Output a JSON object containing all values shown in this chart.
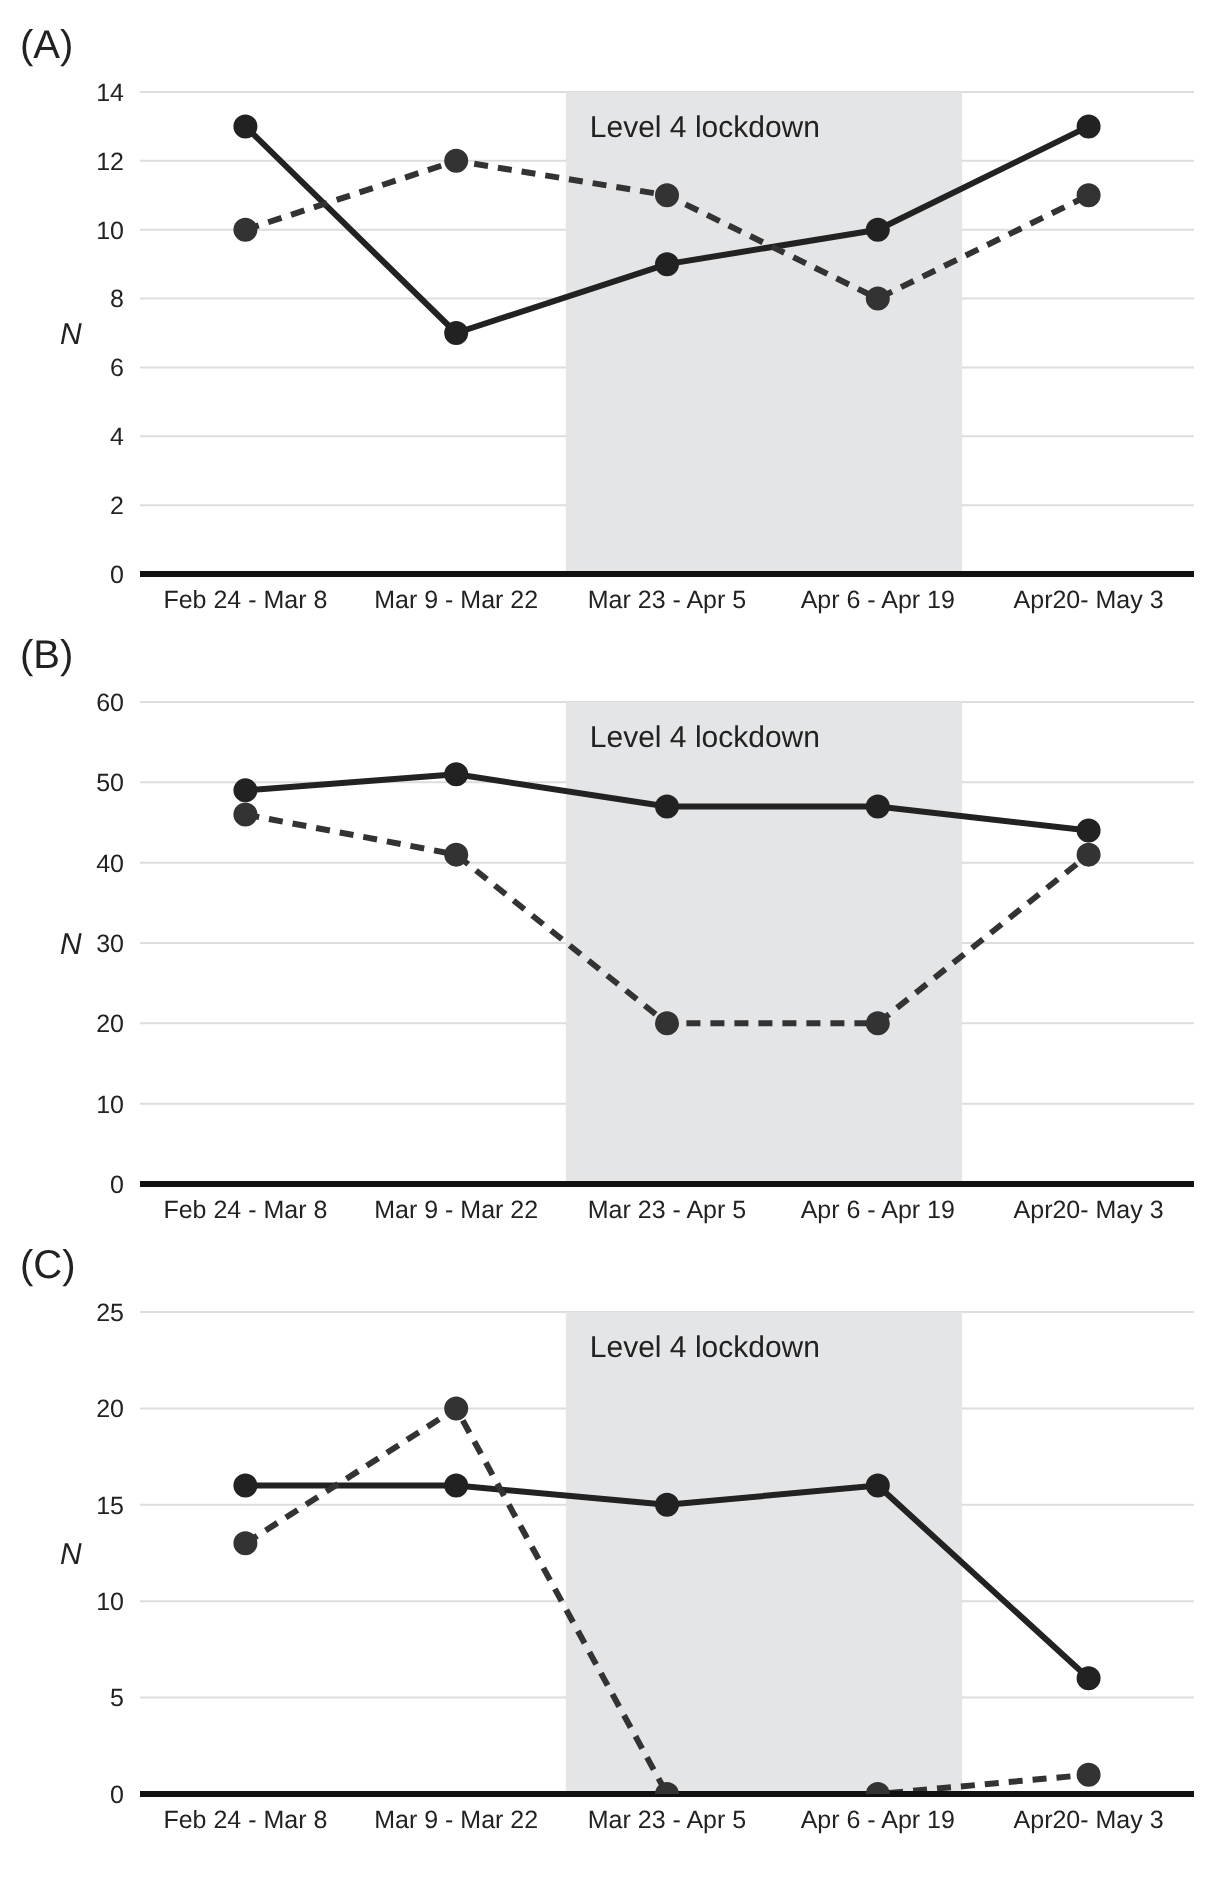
{
  "chart_data": [
    {
      "type": "line",
      "title": "(A)",
      "ylabel": "N",
      "categories": [
        "Feb 24 - Mar 8",
        "Mar 9 - Mar 22",
        "Mar 23 - Apr 5",
        "Apr 6 - Apr 19",
        "Apr20- May 3"
      ],
      "series": [
        {
          "color": "#222222",
          "line_style": "solid",
          "values": [
            13,
            7,
            9,
            10,
            13
          ]
        },
        {
          "color": "#333333",
          "line_style": "dashed",
          "values": [
            10,
            12,
            11,
            8,
            11
          ]
        }
      ],
      "ylim": [
        0,
        14
      ],
      "yticks": [
        0,
        2,
        4,
        6,
        8,
        10,
        12,
        14
      ],
      "grid": "y",
      "marker": "circle",
      "bands": [
        {
          "axis": "x",
          "from": "Mar 23 - Apr 5",
          "to": "Apr 6 - Apr 19",
          "label": "Level 4 lockdown",
          "color": "#e4e5e7"
        }
      ]
    },
    {
      "type": "line",
      "title": "(B)",
      "ylabel": "N",
      "categories": [
        "Feb 24 - Mar 8",
        "Mar 9 - Mar 22",
        "Mar 23 - Apr 5",
        "Apr 6 - Apr 19",
        "Apr20- May 3"
      ],
      "series": [
        {
          "color": "#222222",
          "line_style": "solid",
          "values": [
            49,
            51,
            47,
            47,
            44
          ]
        },
        {
          "color": "#333333",
          "line_style": "dashed",
          "values": [
            46,
            41,
            20,
            20,
            41
          ]
        }
      ],
      "ylim": [
        0,
        60
      ],
      "yticks": [
        0,
        10,
        20,
        30,
        40,
        50,
        60
      ],
      "grid": "y",
      "marker": "circle",
      "bands": [
        {
          "axis": "x",
          "from": "Mar 23 - Apr 5",
          "to": "Apr 6 - Apr 19",
          "label": "Level 4 lockdown",
          "color": "#e4e5e7"
        }
      ]
    },
    {
      "type": "line",
      "title": "(C)",
      "ylabel": "N",
      "categories": [
        "Feb 24 - Mar 8",
        "Mar 9 - Mar 22",
        "Mar 23 - Apr 5",
        "Apr 6 - Apr 19",
        "Apr20- May 3"
      ],
      "series": [
        {
          "color": "#222222",
          "line_style": "solid",
          "values": [
            16,
            16,
            15,
            16,
            6
          ]
        },
        {
          "color": "#333333",
          "line_style": "dashed",
          "values": [
            13,
            20,
            0,
            0,
            1
          ]
        }
      ],
      "ylim": [
        0,
        25
      ],
      "yticks": [
        0,
        5,
        10,
        15,
        20,
        25
      ],
      "grid": "y",
      "marker": "circle",
      "bands": [
        {
          "axis": "x",
          "from": "Mar 23 - Apr 5",
          "to": "Apr 6 - Apr 19",
          "label": "Level 4 lockdown",
          "color": "#e4e5e7"
        }
      ]
    }
  ]
}
